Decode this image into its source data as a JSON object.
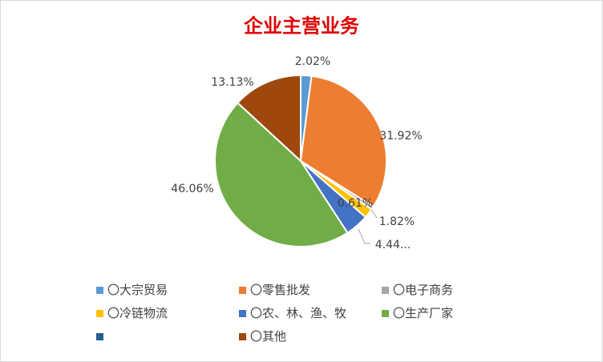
{
  "chart_data": {
    "type": "pie",
    "title": "企业主营业务",
    "categories": [
      "〇大宗贸易",
      "〇零售批发",
      "〇电子商务",
      "〇冷链物流",
      "〇农、林、渔、牧",
      "〇生产厂家",
      null,
      "〇其他"
    ],
    "values": [
      2.02,
      31.92,
      0.61,
      1.82,
      4.44,
      46.06,
      0,
      13.13
    ],
    "value_labels": [
      "2.02%",
      "31.92%",
      "0.61%",
      "1.82%",
      "4.44...",
      "46.06%",
      null,
      "13.13%"
    ],
    "colors": [
      "#5b9bd5",
      "#ed7d31",
      "#a5a5a5",
      "#ffc000",
      "#4472c4",
      "#70ad47",
      "#255e91",
      "#9e480e"
    ],
    "legend": "bottom"
  }
}
